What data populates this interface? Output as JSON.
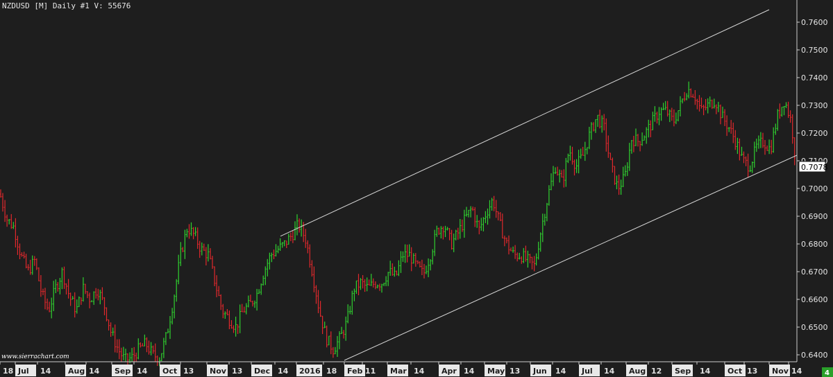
{
  "colors": {
    "background": "#1e1e1e",
    "up_bar": "#2fd12f",
    "down_bar": "#e0282c",
    "channel_line": "#d8d8d8",
    "axis_text": "#e6e6e6"
  },
  "header": {
    "title": "NZDUSD [M]  Daily  #1 V: 55676"
  },
  "watermark": "www.sierrachart.com",
  "corner_badge": "4",
  "chart_data": {
    "type": "ohlc",
    "symbol": "NZDUSD [M]",
    "interval": "Daily",
    "volume_readout": "V: 55676",
    "last_price": "0.7078",
    "ylim": [
      0.638,
      0.768
    ],
    "y_ticks": [
      "0.6400",
      "0.6500",
      "0.6600",
      "0.6700",
      "0.6800",
      "0.6900",
      "0.7000",
      "0.7100",
      "0.7200",
      "0.7300",
      "0.7400",
      "0.7500",
      "0.7600"
    ],
    "x_ticks": [
      {
        "label": "18",
        "boxed": false
      },
      {
        "label": "Jul",
        "boxed": true
      },
      {
        "label": "14",
        "boxed": false
      },
      {
        "label": "Aug",
        "boxed": true
      },
      {
        "label": "14",
        "boxed": false
      },
      {
        "label": "Sep",
        "boxed": true
      },
      {
        "label": "14",
        "boxed": false
      },
      {
        "label": "Oct",
        "boxed": true
      },
      {
        "label": "13",
        "boxed": false
      },
      {
        "label": "Nov",
        "boxed": true
      },
      {
        "label": "13",
        "boxed": false
      },
      {
        "label": "Dec",
        "boxed": true
      },
      {
        "label": "14",
        "boxed": false
      },
      {
        "label": "2016",
        "boxed": true
      },
      {
        "label": "18",
        "boxed": false
      },
      {
        "label": "Feb",
        "boxed": true
      },
      {
        "label": "11",
        "boxed": false
      },
      {
        "label": "Mar",
        "boxed": true
      },
      {
        "label": "14",
        "boxed": false
      },
      {
        "label": "Apr",
        "boxed": true
      },
      {
        "label": "14",
        "boxed": false
      },
      {
        "label": "May",
        "boxed": true
      },
      {
        "label": "13",
        "boxed": false
      },
      {
        "label": "Jun",
        "boxed": true
      },
      {
        "label": "14",
        "boxed": false
      },
      {
        "label": "Jul",
        "boxed": true
      },
      {
        "label": "14",
        "boxed": false
      },
      {
        "label": "Aug",
        "boxed": true
      },
      {
        "label": "12",
        "boxed": false
      },
      {
        "label": "Sep",
        "boxed": true
      },
      {
        "label": "14",
        "boxed": false
      },
      {
        "label": "Oct",
        "boxed": true
      },
      {
        "label": "13",
        "boxed": false
      },
      {
        "label": "Nov",
        "boxed": true
      },
      {
        "label": "14",
        "boxed": false
      }
    ],
    "path_anchors": [
      [
        0,
        0.698
      ],
      [
        10,
        0.689
      ],
      [
        20,
        0.686
      ],
      [
        30,
        0.676
      ],
      [
        40,
        0.67
      ],
      [
        50,
        0.674
      ],
      [
        60,
        0.662
      ],
      [
        70,
        0.656
      ],
      [
        80,
        0.664
      ],
      [
        90,
        0.67
      ],
      [
        100,
        0.661
      ],
      [
        110,
        0.656
      ],
      [
        120,
        0.664
      ],
      [
        130,
        0.66
      ],
      [
        140,
        0.664
      ],
      [
        150,
        0.658
      ],
      [
        160,
        0.648
      ],
      [
        170,
        0.642
      ],
      [
        180,
        0.638
      ],
      [
        190,
        0.639
      ],
      [
        200,
        0.642
      ],
      [
        210,
        0.644
      ],
      [
        220,
        0.64
      ],
      [
        230,
        0.639
      ],
      [
        240,
        0.647
      ],
      [
        250,
        0.66
      ],
      [
        260,
        0.676
      ],
      [
        270,
        0.686
      ],
      [
        280,
        0.683
      ],
      [
        290,
        0.678
      ],
      [
        300,
        0.676
      ],
      [
        310,
        0.666
      ],
      [
        320,
        0.656
      ],
      [
        330,
        0.653
      ],
      [
        340,
        0.65
      ],
      [
        350,
        0.656
      ],
      [
        360,
        0.658
      ],
      [
        370,
        0.662
      ],
      [
        380,
        0.67
      ],
      [
        390,
        0.676
      ],
      [
        400,
        0.678
      ],
      [
        410,
        0.68
      ],
      [
        420,
        0.683
      ],
      [
        430,
        0.687
      ],
      [
        440,
        0.682
      ],
      [
        450,
        0.67
      ],
      [
        460,
        0.656
      ],
      [
        470,
        0.646
      ],
      [
        480,
        0.642
      ],
      [
        490,
        0.646
      ],
      [
        500,
        0.652
      ],
      [
        510,
        0.664
      ],
      [
        520,
        0.666
      ],
      [
        530,
        0.664
      ],
      [
        540,
        0.666
      ],
      [
        550,
        0.666
      ],
      [
        560,
        0.67
      ],
      [
        570,
        0.668
      ],
      [
        580,
        0.676
      ],
      [
        590,
        0.676
      ],
      [
        600,
        0.672
      ],
      [
        610,
        0.669
      ],
      [
        620,
        0.676
      ],
      [
        630,
        0.685
      ],
      [
        640,
        0.687
      ],
      [
        650,
        0.68
      ],
      [
        660,
        0.684
      ],
      [
        670,
        0.689
      ],
      [
        680,
        0.693
      ],
      [
        690,
        0.685
      ],
      [
        700,
        0.691
      ],
      [
        710,
        0.696
      ],
      [
        720,
        0.687
      ],
      [
        730,
        0.68
      ],
      [
        740,
        0.676
      ],
      [
        750,
        0.676
      ],
      [
        760,
        0.674
      ],
      [
        770,
        0.672
      ],
      [
        780,
        0.686
      ],
      [
        790,
        0.698
      ],
      [
        800,
        0.708
      ],
      [
        810,
        0.702
      ],
      [
        820,
        0.714
      ],
      [
        830,
        0.708
      ],
      [
        840,
        0.712
      ],
      [
        850,
        0.72
      ],
      [
        860,
        0.726
      ],
      [
        870,
        0.722
      ],
      [
        880,
        0.708
      ],
      [
        890,
        0.7
      ],
      [
        900,
        0.704
      ],
      [
        910,
        0.718
      ],
      [
        920,
        0.717
      ],
      [
        930,
        0.72
      ],
      [
        940,
        0.724
      ],
      [
        950,
        0.728
      ],
      [
        960,
        0.728
      ],
      [
        970,
        0.724
      ],
      [
        980,
        0.73
      ],
      [
        990,
        0.736
      ],
      [
        1000,
        0.734
      ],
      [
        1010,
        0.728
      ],
      [
        1020,
        0.73
      ],
      [
        1030,
        0.732
      ],
      [
        1040,
        0.726
      ],
      [
        1050,
        0.722
      ],
      [
        1060,
        0.717
      ],
      [
        1070,
        0.71
      ],
      [
        1080,
        0.708
      ],
      [
        1090,
        0.715
      ],
      [
        1100,
        0.717
      ],
      [
        1110,
        0.714
      ],
      [
        1120,
        0.726
      ],
      [
        1130,
        0.732
      ],
      [
        1140,
        0.724
      ],
      [
        1146,
        0.71
      ]
    ],
    "channel": {
      "upper": [
        [
          404,
          0.6828
        ],
        [
          1108,
          0.7645
        ]
      ],
      "lower": [
        [
          496,
          0.638
        ],
        [
          1148,
          0.712
        ]
      ]
    }
  }
}
